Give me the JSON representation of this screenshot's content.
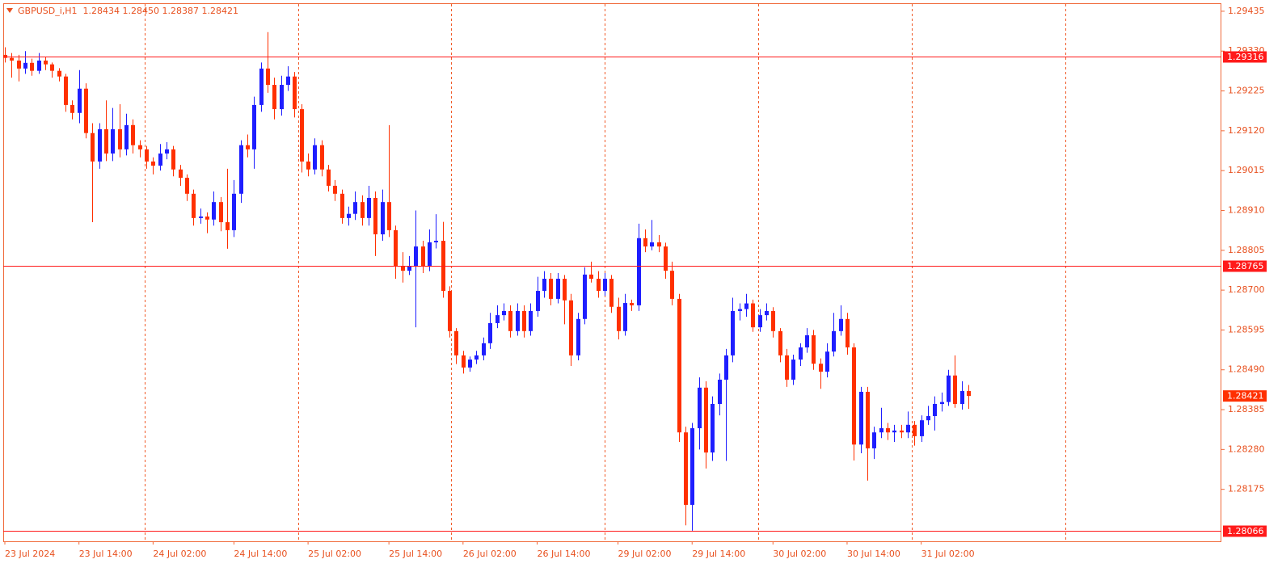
{
  "chart_data": {
    "type": "candlestick",
    "title": "GBPUSD_i,H1  1.28434 1.28450 1.28387 1.28421",
    "up_color": "#1e1eff",
    "down_color": "#ff3000",
    "level_color": "#ff1a1a",
    "ylim": [
      1.28038,
      1.29454
    ],
    "yticks": [
      1.29435,
      {
        "value": 1.2933,
        "label": "1.29330"
      },
      1.29225,
      {
        "value": 1.2912,
        "label": "1.29120"
      },
      1.29015,
      {
        "value": 1.2891,
        "label": "1.28910"
      },
      1.28805,
      {
        "value": 1.287,
        "label": "1.28700"
      },
      1.28595,
      {
        "value": 1.2849,
        "label": "1.28490"
      },
      1.28385,
      {
        "value": 1.2828,
        "label": "1.28280"
      },
      1.28175
    ],
    "levels": [
      1.29316,
      1.28765,
      1.28066
    ],
    "current_price": 1.28421,
    "categories": [
      "23 Jul 2024",
      null,
      null,
      null,
      null,
      null,
      null,
      null,
      null,
      null,
      null,
      "23 Jul 14:00",
      null,
      null,
      null,
      null,
      null,
      null,
      null,
      null,
      null,
      null,
      "24 Jul 02:00",
      null,
      null,
      null,
      null,
      null,
      null,
      null,
      null,
      null,
      null,
      null,
      "24 Jul 14:00",
      null,
      null,
      null,
      null,
      null,
      null,
      null,
      null,
      null,
      null,
      "25 Jul 02:00",
      null,
      null,
      null,
      null,
      null,
      null,
      null,
      null,
      null,
      null,
      null,
      "25 Jul 14:00",
      null,
      null,
      null,
      null,
      null,
      null,
      null,
      null,
      null,
      null,
      "26 Jul 02:00",
      null,
      null,
      null,
      null,
      null,
      null,
      null,
      null,
      null,
      null,
      "26 Jul 14:00",
      null,
      null,
      null,
      null,
      null,
      null,
      null,
      null,
      null,
      null,
      null,
      "29 Jul 02:00",
      null,
      null,
      null,
      null,
      null,
      null,
      null,
      null,
      null,
      null,
      "29 Jul 14:00",
      null,
      null,
      null,
      null,
      null,
      null,
      null,
      null,
      null,
      null,
      null,
      "30 Jul 02:00",
      null,
      null,
      null,
      null,
      null,
      null,
      null,
      null,
      null,
      null,
      "30 Jul 14:00",
      null,
      null,
      null,
      null,
      null,
      null,
      null,
      null,
      null,
      null,
      "31 Jul 02:00",
      null,
      null,
      null,
      null,
      null,
      null,
      null
    ],
    "candles": [
      [
        1.2932,
        1.2934,
        1.293,
        1.29312
      ],
      [
        1.29312,
        1.29325,
        1.2926,
        1.29305
      ],
      [
        1.29305,
        1.2932,
        1.2925,
        1.29284
      ],
      [
        1.29284,
        1.2933,
        1.2927,
        1.29299
      ],
      [
        1.29299,
        1.2931,
        1.29265,
        1.29278
      ],
      [
        1.29278,
        1.29325,
        1.2927,
        1.29305
      ],
      [
        1.29305,
        1.29315,
        1.2928,
        1.29295
      ],
      [
        1.29295,
        1.293,
        1.2926,
        1.29278
      ],
      [
        1.29278,
        1.29285,
        1.2925,
        1.29263
      ],
      [
        1.29263,
        1.2927,
        1.2917,
        1.29188
      ],
      [
        1.29188,
        1.292,
        1.2915,
        1.29167
      ],
      [
        1.29167,
        1.2928,
        1.2914,
        1.29231
      ],
      [
        1.29231,
        1.29245,
        1.291,
        1.29114
      ],
      [
        1.29114,
        1.2914,
        1.28879,
        1.29039
      ],
      [
        1.29039,
        1.2914,
        1.2902,
        1.29124
      ],
      [
        1.29124,
        1.292,
        1.2904,
        1.2906
      ],
      [
        1.2906,
        1.2918,
        1.2904,
        1.29124
      ],
      [
        1.29124,
        1.2919,
        1.2905,
        1.29071
      ],
      [
        1.29071,
        1.29165,
        1.29055,
        1.29135
      ],
      [
        1.29135,
        1.2915,
        1.2906,
        1.29082
      ],
      [
        1.29082,
        1.29095,
        1.2905,
        1.29071
      ],
      [
        1.29071,
        1.2908,
        1.2902,
        1.29039
      ],
      [
        1.29039,
        1.2905,
        1.29005,
        1.29028
      ],
      [
        1.29028,
        1.29085,
        1.29015,
        1.2906
      ],
      [
        1.2906,
        1.2909,
        1.29045,
        1.29071
      ],
      [
        1.29071,
        1.2908,
        1.29,
        1.29018
      ],
      [
        1.29018,
        1.2903,
        1.28975,
        1.28996
      ],
      [
        1.28996,
        1.29005,
        1.28935,
        1.28954
      ],
      [
        1.28954,
        1.28965,
        1.2887,
        1.2889
      ],
      [
        1.2889,
        1.28915,
        1.28875,
        1.28894
      ],
      [
        1.28894,
        1.28905,
        1.2885,
        1.28886
      ],
      [
        1.28886,
        1.2896,
        1.2887,
        1.28932
      ],
      [
        1.28932,
        1.28945,
        1.28855,
        1.28879
      ],
      [
        1.28879,
        1.2902,
        1.28809,
        1.28858
      ],
      [
        1.28858,
        1.2899,
        1.2884,
        1.28954
      ],
      [
        1.28954,
        1.29095,
        1.2893,
        1.29082
      ],
      [
        1.29082,
        1.2911,
        1.2905,
        1.29071
      ],
      [
        1.29071,
        1.2921,
        1.2902,
        1.29188
      ],
      [
        1.29188,
        1.293,
        1.2917,
        1.29284
      ],
      [
        1.29284,
        1.2938,
        1.2922,
        1.29241
      ],
      [
        1.29241,
        1.2926,
        1.2915,
        1.29177
      ],
      [
        1.29177,
        1.29265,
        1.2916,
        1.29241
      ],
      [
        1.29241,
        1.2929,
        1.29225,
        1.29263
      ],
      [
        1.29263,
        1.29275,
        1.29155,
        1.29177
      ],
      [
        1.29177,
        1.2919,
        1.2901,
        1.29039
      ],
      [
        1.29039,
        1.2906,
        1.29,
        1.29018
      ],
      [
        1.29018,
        1.291,
        1.29005,
        1.29082
      ],
      [
        1.29082,
        1.29095,
        1.29,
        1.29018
      ],
      [
        1.29018,
        1.2903,
        1.2896,
        1.28975
      ],
      [
        1.28975,
        1.2899,
        1.28935,
        1.28954
      ],
      [
        1.28954,
        1.28965,
        1.28875,
        1.2889
      ],
      [
        1.2889,
        1.2892,
        1.2887,
        1.28901
      ],
      [
        1.28901,
        1.2896,
        1.28885,
        1.28932
      ],
      [
        1.28932,
        1.2895,
        1.2887,
        1.2889
      ],
      [
        1.2889,
        1.28975,
        1.2887,
        1.28943
      ],
      [
        1.28943,
        1.2896,
        1.2879,
        1.28847
      ],
      [
        1.28847,
        1.28965,
        1.2883,
        1.28932
      ],
      [
        1.28932,
        1.29135,
        1.2884,
        1.28858
      ],
      [
        1.28858,
        1.2887,
        1.2873,
        1.28762
      ],
      [
        1.28762,
        1.288,
        1.2872,
        1.28751
      ],
      [
        1.28751,
        1.2879,
        1.2874,
        1.28762
      ],
      [
        1.28762,
        1.2891,
        1.28602,
        1.28815
      ],
      [
        1.28815,
        1.2883,
        1.28745,
        1.28762
      ],
      [
        1.28762,
        1.2886,
        1.2875,
        1.28826
      ],
      [
        1.28826,
        1.289,
        1.2881,
        1.2883
      ],
      [
        1.2883,
        1.2888,
        1.2868,
        1.28698
      ],
      [
        1.28698,
        1.2871,
        1.28575,
        1.28592
      ],
      [
        1.28592,
        1.286,
        1.28505,
        1.28528
      ],
      [
        1.28528,
        1.2854,
        1.2848,
        1.28496
      ],
      [
        1.28496,
        1.28525,
        1.28485,
        1.28517
      ],
      [
        1.28517,
        1.2854,
        1.28505,
        1.28528
      ],
      [
        1.28528,
        1.28575,
        1.28515,
        1.2856
      ],
      [
        1.2856,
        1.2864,
        1.28545,
        1.28613
      ],
      [
        1.28613,
        1.2866,
        1.286,
        1.28634
      ],
      [
        1.28634,
        1.28665,
        1.2862,
        1.28645
      ],
      [
        1.28645,
        1.2866,
        1.28575,
        1.28592
      ],
      [
        1.28592,
        1.28665,
        1.2858,
        1.28645
      ],
      [
        1.28645,
        1.2866,
        1.28575,
        1.28592
      ],
      [
        1.28592,
        1.28665,
        1.2858,
        1.28645
      ],
      [
        1.28645,
        1.28735,
        1.2863,
        1.28698
      ],
      [
        1.28698,
        1.2875,
        1.2868,
        1.2873
      ],
      [
        1.2873,
        1.28745,
        1.2866,
        1.28677
      ],
      [
        1.28677,
        1.28745,
        1.28665,
        1.2873
      ],
      [
        1.2873,
        1.2874,
        1.2861,
        1.28673
      ],
      [
        1.28673,
        1.2869,
        1.285,
        1.28528
      ],
      [
        1.28528,
        1.2864,
        1.28515,
        1.28624
      ],
      [
        1.28624,
        1.2876,
        1.2861,
        1.28741
      ],
      [
        1.28741,
        1.28775,
        1.2872,
        1.2873
      ],
      [
        1.2873,
        1.2875,
        1.2868,
        1.28698
      ],
      [
        1.28698,
        1.28745,
        1.28685,
        1.2873
      ],
      [
        1.2873,
        1.2874,
        1.2864,
        1.28656
      ],
      [
        1.28656,
        1.2868,
        1.2857,
        1.28592
      ],
      [
        1.28592,
        1.2869,
        1.2858,
        1.28666
      ],
      [
        1.28666,
        1.28675,
        1.28645,
        1.2866
      ],
      [
        1.2866,
        1.28875,
        1.28645,
        1.28837
      ],
      [
        1.28837,
        1.2886,
        1.288,
        1.28815
      ],
      [
        1.28815,
        1.28885,
        1.28805,
        1.28826
      ],
      [
        1.28826,
        1.28845,
        1.288,
        1.28815
      ],
      [
        1.28815,
        1.28825,
        1.2873,
        1.28751
      ],
      [
        1.28751,
        1.28775,
        1.2866,
        1.28677
      ],
      [
        1.28677,
        1.2869,
        1.283,
        1.28325
      ],
      [
        1.28325,
        1.2834,
        1.2808,
        1.28134
      ],
      [
        1.28134,
        1.2835,
        1.28066,
        1.28336
      ],
      [
        1.28336,
        1.2847,
        1.2828,
        1.28443
      ],
      [
        1.28443,
        1.2846,
        1.2823,
        1.28272
      ],
      [
        1.28272,
        1.2842,
        1.2825,
        1.284
      ],
      [
        1.284,
        1.2848,
        1.2837,
        1.28464
      ],
      [
        1.28464,
        1.28545,
        1.2825,
        1.28528
      ],
      [
        1.28528,
        1.2868,
        1.2851,
        1.28645
      ],
      [
        1.28645,
        1.28665,
        1.2862,
        1.2865
      ],
      [
        1.2865,
        1.2869,
        1.2863,
        1.28665
      ],
      [
        1.28665,
        1.28675,
        1.2859,
        1.28602
      ],
      [
        1.28602,
        1.2865,
        1.2859,
        1.28634
      ],
      [
        1.28634,
        1.28665,
        1.2862,
        1.28645
      ],
      [
        1.28645,
        1.28655,
        1.28575,
        1.28592
      ],
      [
        1.28592,
        1.286,
        1.2851,
        1.28528
      ],
      [
        1.28528,
        1.28545,
        1.28445,
        1.28464
      ],
      [
        1.28464,
        1.2853,
        1.2845,
        1.28517
      ],
      [
        1.28517,
        1.2856,
        1.285,
        1.28549
      ],
      [
        1.28549,
        1.286,
        1.28535,
        1.28581
      ],
      [
        1.28581,
        1.28595,
        1.2849,
        1.28506
      ],
      [
        1.28506,
        1.2852,
        1.2844,
        1.28485
      ],
      [
        1.28485,
        1.2856,
        1.2847,
        1.28538
      ],
      [
        1.28538,
        1.2864,
        1.28525,
        1.28592
      ],
      [
        1.28592,
        1.2866,
        1.2858,
        1.28624
      ],
      [
        1.28624,
        1.2864,
        1.2853,
        1.28549
      ],
      [
        1.28549,
        1.2856,
        1.28251,
        1.28293
      ],
      [
        1.28293,
        1.28445,
        1.2827,
        1.28432
      ],
      [
        1.28432,
        1.28445,
        1.28198,
        1.28283
      ],
      [
        1.28283,
        1.2834,
        1.28255,
        1.28325
      ],
      [
        1.28325,
        1.2839,
        1.2831,
        1.28336
      ],
      [
        1.28336,
        1.2835,
        1.28305,
        1.28325
      ],
      [
        1.28325,
        1.28345,
        1.283,
        1.2833
      ],
      [
        1.2833,
        1.28345,
        1.2831,
        1.28325
      ],
      [
        1.28325,
        1.2838,
        1.2831,
        1.28345
      ],
      [
        1.28345,
        1.28355,
        1.2829,
        1.28315
      ],
      [
        1.28315,
        1.2837,
        1.283,
        1.28357
      ],
      [
        1.28357,
        1.28395,
        1.28345,
        1.28368
      ],
      [
        1.28368,
        1.2842,
        1.2833,
        1.284
      ],
      [
        1.284,
        1.2843,
        1.2838,
        1.28405
      ],
      [
        1.28405,
        1.2849,
        1.28395,
        1.28475
      ],
      [
        1.28475,
        1.28528,
        1.2839,
        1.284
      ],
      [
        1.284,
        1.2846,
        1.28385,
        1.28434
      ],
      [
        1.28434,
        1.2845,
        1.28387,
        1.28421
      ]
    ]
  }
}
